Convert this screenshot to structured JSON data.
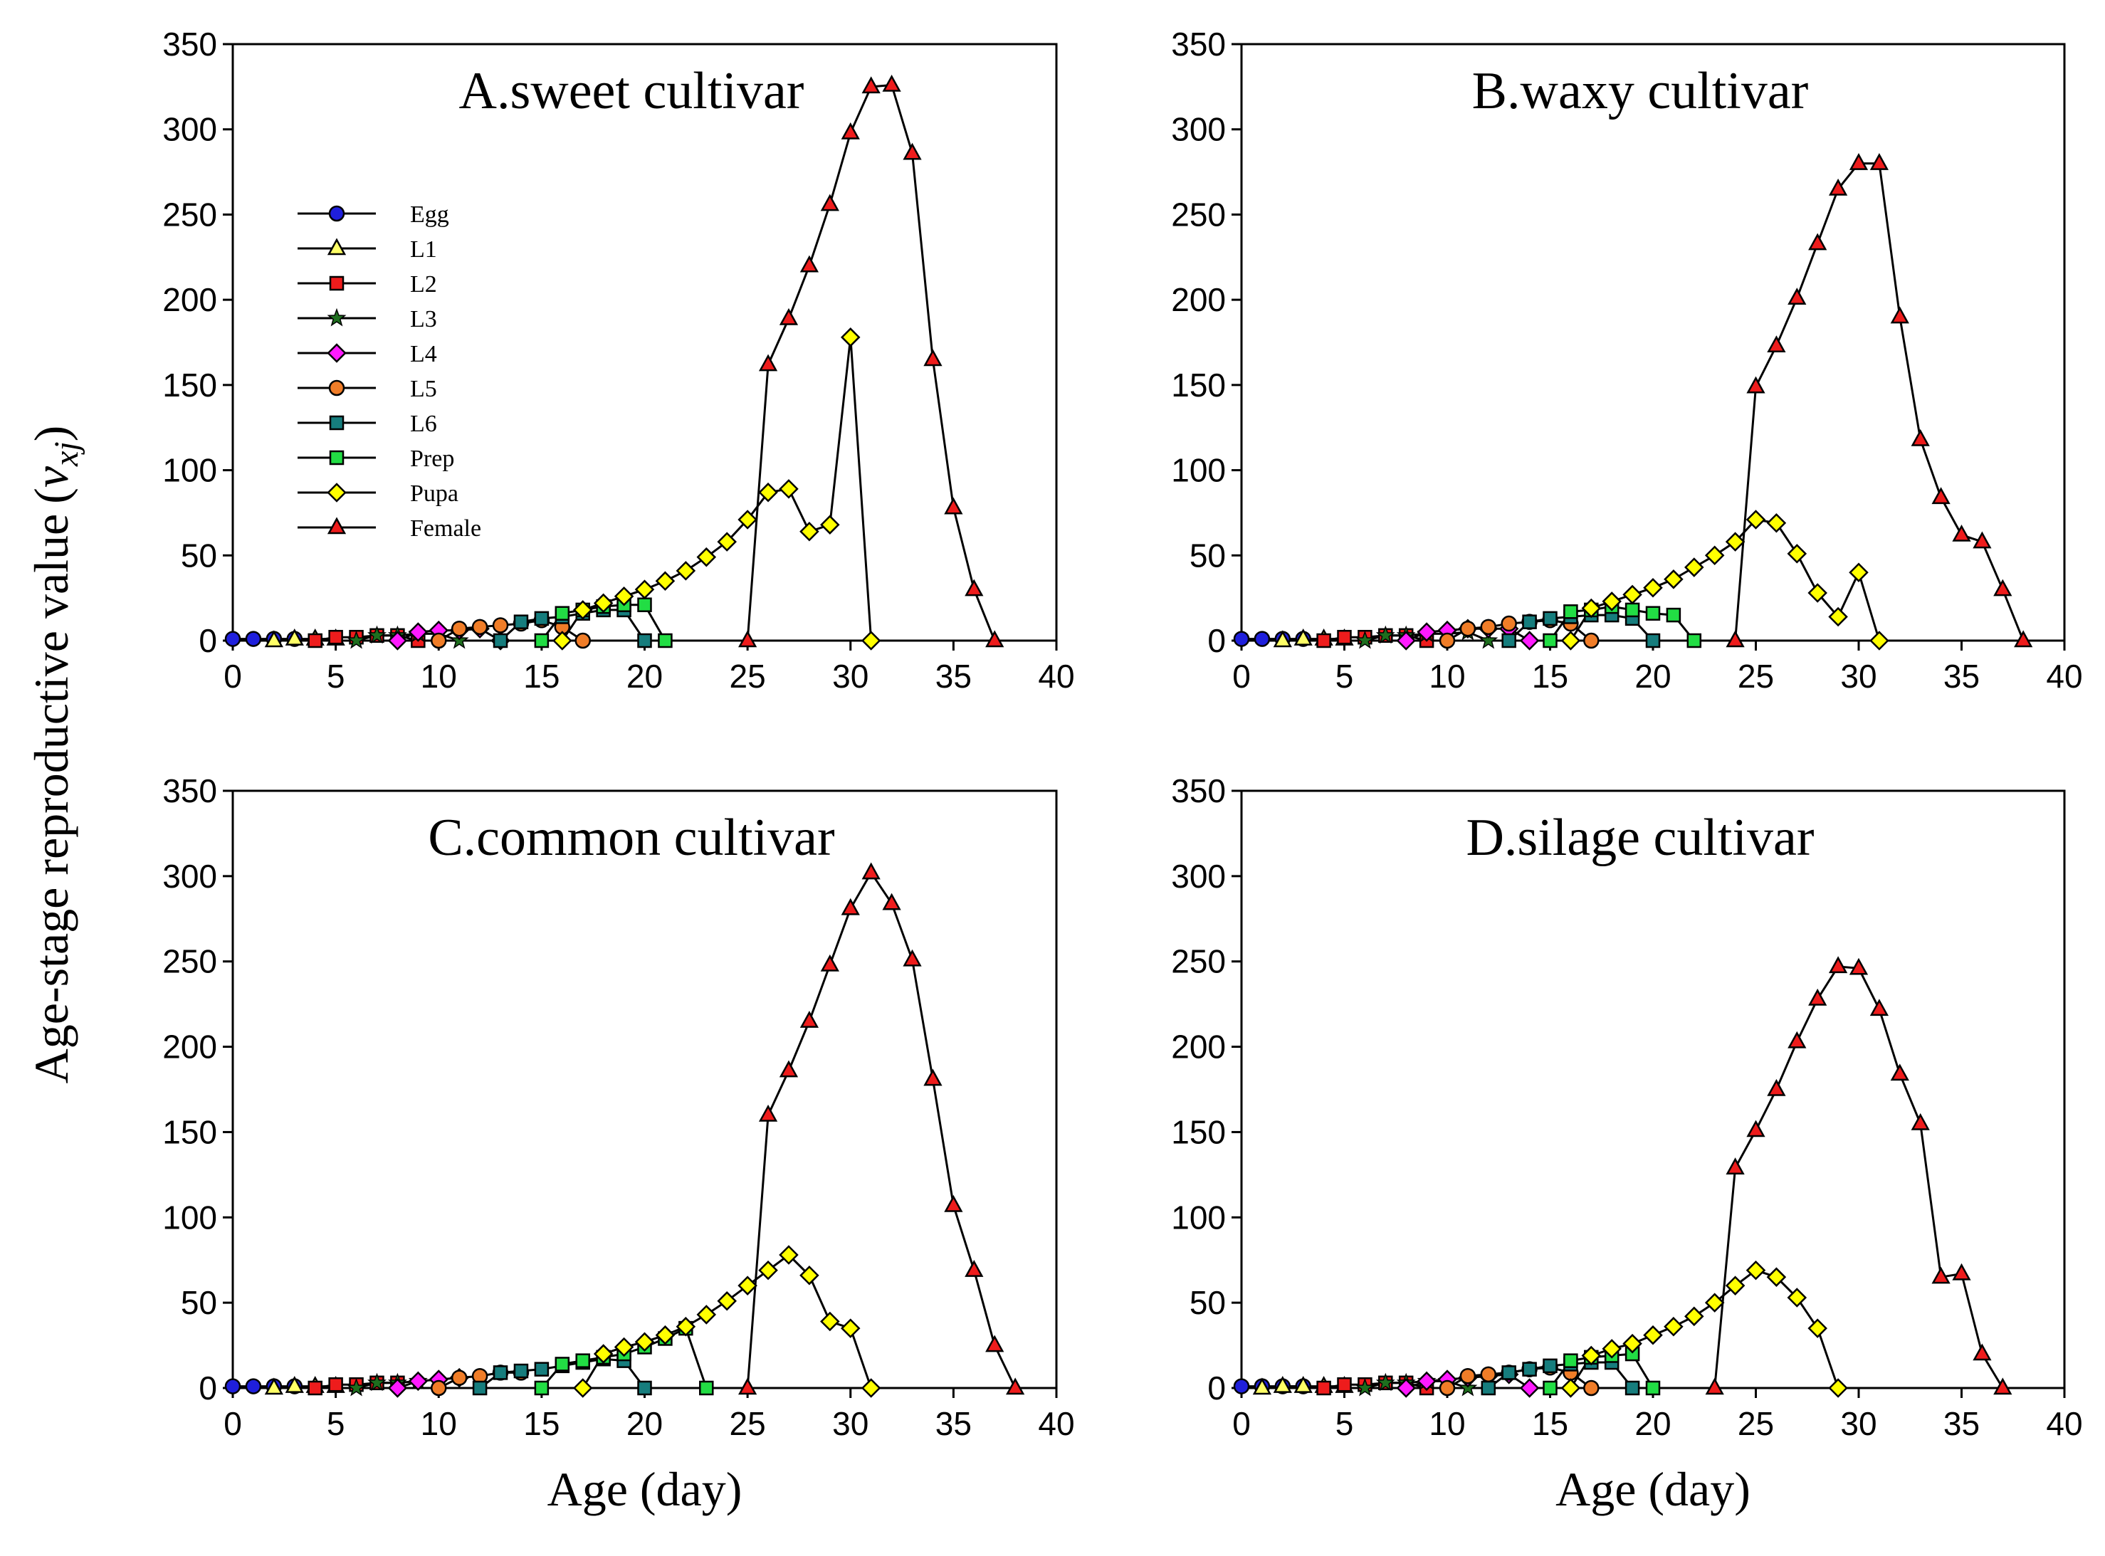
{
  "figure": {
    "y_axis_label": "Age-stage reproductive value",
    "y_axis_symbol": "v",
    "y_axis_subscript": "xj",
    "x_axis_label": "Age (day)"
  },
  "legend": [
    {
      "name": "Egg",
      "color": "#1f1fdc",
      "marker": "circle"
    },
    {
      "name": "L1",
      "color": "#ffff66",
      "marker": "triangle"
    },
    {
      "name": "L2",
      "color": "#ee1c1c",
      "marker": "square"
    },
    {
      "name": "L3",
      "color": "#1e6e1e",
      "marker": "star"
    },
    {
      "name": "L4",
      "color": "#ff1aff",
      "marker": "diamond"
    },
    {
      "name": "L5",
      "color": "#f07d28",
      "marker": "circle"
    },
    {
      "name": "L6",
      "color": "#167d7d",
      "marker": "square"
    },
    {
      "name": "Prep",
      "color": "#22dd44",
      "marker": "square"
    },
    {
      "name": "Pupa",
      "color": "#ffff00",
      "marker": "diamond"
    },
    {
      "name": "Female",
      "color": "#ee1c1c",
      "marker": "triangle"
    }
  ],
  "chart_data": [
    {
      "type": "line",
      "title": "A.sweet cultivar",
      "xlabel": "Age (day)",
      "ylabel": "Age-stage reproductive value (vxj)",
      "xlim": [
        0,
        40
      ],
      "ylim": [
        0,
        350
      ],
      "xticks": [
        0,
        5,
        10,
        15,
        20,
        25,
        30,
        35,
        40
      ],
      "yticks": [
        0,
        50,
        100,
        150,
        200,
        250,
        300,
        350
      ],
      "series": [
        {
          "name": "Egg",
          "x": [
            0,
            1,
            2,
            3
          ],
          "y": [
            1,
            1,
            1,
            1
          ]
        },
        {
          "name": "L1",
          "x": [
            2,
            3,
            4,
            5
          ],
          "y": [
            0,
            1,
            1,
            1
          ]
        },
        {
          "name": "L2",
          "x": [
            4,
            5,
            6,
            7,
            8,
            9
          ],
          "y": [
            0,
            2,
            2,
            3,
            3,
            0
          ]
        },
        {
          "name": "L3",
          "x": [
            6,
            7,
            8,
            9,
            10,
            11
          ],
          "y": [
            0,
            3,
            3,
            4,
            4,
            0
          ]
        },
        {
          "name": "L4",
          "x": [
            8,
            9,
            10,
            11,
            12,
            13
          ],
          "y": [
            0,
            5,
            6,
            6,
            7,
            0
          ]
        },
        {
          "name": "L5",
          "x": [
            10,
            11,
            12,
            13,
            14,
            15,
            16,
            17
          ],
          "y": [
            0,
            7,
            8,
            9,
            10,
            12,
            8,
            0
          ]
        },
        {
          "name": "L6",
          "x": [
            13,
            14,
            15,
            16,
            17,
            18,
            19,
            20
          ],
          "y": [
            0,
            11,
            13,
            14,
            16,
            18,
            18,
            0
          ]
        },
        {
          "name": "Prep",
          "x": [
            15,
            16,
            17,
            18,
            19,
            20,
            21
          ],
          "y": [
            0,
            16,
            18,
            20,
            21,
            21,
            0
          ]
        },
        {
          "name": "Pupa",
          "x": [
            16,
            17,
            18,
            19,
            20,
            21,
            22,
            23,
            24,
            25,
            26,
            27,
            28,
            29,
            30,
            31
          ],
          "y": [
            0,
            18,
            22,
            26,
            30,
            35,
            41,
            49,
            58,
            71,
            87,
            89,
            64,
            68,
            178,
            0
          ]
        },
        {
          "name": "Female",
          "x": [
            25,
            26,
            27,
            28,
            29,
            30,
            31,
            32,
            33,
            34,
            35,
            36,
            37
          ],
          "y": [
            0,
            162,
            189,
            220,
            256,
            298,
            325,
            326,
            286,
            165,
            78,
            30,
            0
          ]
        }
      ]
    },
    {
      "type": "line",
      "title": "B.waxy cultivar",
      "xlabel": "Age (day)",
      "ylabel": "Age-stage reproductive value (vxj)",
      "xlim": [
        0,
        40
      ],
      "ylim": [
        0,
        350
      ],
      "xticks": [
        0,
        5,
        10,
        15,
        20,
        25,
        30,
        35,
        40
      ],
      "yticks": [
        0,
        50,
        100,
        150,
        200,
        250,
        300,
        350
      ],
      "series": [
        {
          "name": "Egg",
          "x": [
            0,
            1,
            2,
            3
          ],
          "y": [
            1,
            1,
            1,
            1
          ]
        },
        {
          "name": "L1",
          "x": [
            2,
            3,
            4,
            5
          ],
          "y": [
            0,
            1,
            1,
            1
          ]
        },
        {
          "name": "L2",
          "x": [
            4,
            5,
            6,
            7,
            8,
            9
          ],
          "y": [
            0,
            2,
            2,
            3,
            3,
            0
          ]
        },
        {
          "name": "L3",
          "x": [
            6,
            7,
            8,
            9,
            10,
            11,
            12
          ],
          "y": [
            0,
            3,
            3,
            4,
            4,
            5,
            0
          ]
        },
        {
          "name": "L4",
          "x": [
            8,
            9,
            10,
            11,
            12,
            13,
            14
          ],
          "y": [
            0,
            5,
            6,
            7,
            7,
            7,
            0
          ]
        },
        {
          "name": "L5",
          "x": [
            10,
            11,
            12,
            13,
            14,
            15,
            16,
            17
          ],
          "y": [
            0,
            7,
            8,
            10,
            11,
            12,
            10,
            0
          ]
        },
        {
          "name": "L6",
          "x": [
            13,
            14,
            15,
            16,
            17,
            18,
            19,
            20
          ],
          "y": [
            0,
            11,
            13,
            14,
            15,
            15,
            13,
            0
          ]
        },
        {
          "name": "Prep",
          "x": [
            15,
            16,
            17,
            18,
            19,
            20,
            21,
            22
          ],
          "y": [
            0,
            17,
            18,
            20,
            18,
            16,
            15,
            0
          ]
        },
        {
          "name": "Pupa",
          "x": [
            16,
            17,
            18,
            19,
            20,
            21,
            22,
            23,
            24,
            25,
            26,
            27,
            28,
            29,
            30,
            31
          ],
          "y": [
            0,
            19,
            23,
            27,
            31,
            36,
            43,
            50,
            58,
            71,
            69,
            51,
            28,
            14,
            40,
            0
          ]
        },
        {
          "name": "Female",
          "x": [
            24,
            25,
            26,
            27,
            28,
            29,
            30,
            31,
            32,
            33,
            34,
            35,
            36,
            37,
            38
          ],
          "y": [
            0,
            149,
            173,
            201,
            233,
            265,
            280,
            280,
            190,
            118,
            84,
            62,
            58,
            30,
            0
          ]
        }
      ]
    },
    {
      "type": "line",
      "title": "C.common cultivar",
      "xlabel": "Age (day)",
      "ylabel": "Age-stage reproductive value (vxj)",
      "xlim": [
        0,
        40
      ],
      "ylim": [
        0,
        350
      ],
      "xticks": [
        0,
        5,
        10,
        15,
        20,
        25,
        30,
        35,
        40
      ],
      "yticks": [
        0,
        50,
        100,
        150,
        200,
        250,
        300,
        350
      ],
      "series": [
        {
          "name": "Egg",
          "x": [
            0,
            1,
            2,
            3
          ],
          "y": [
            1,
            1,
            1,
            1
          ]
        },
        {
          "name": "L1",
          "x": [
            2,
            3,
            4,
            5
          ],
          "y": [
            0,
            1,
            1,
            1
          ]
        },
        {
          "name": "L2",
          "x": [
            4,
            5,
            6,
            7,
            8
          ],
          "y": [
            0,
            2,
            2,
            3,
            3
          ]
        },
        {
          "name": "L3",
          "x": [
            6,
            7,
            8,
            9
          ],
          "y": [
            0,
            3,
            3,
            4
          ]
        },
        {
          "name": "L4",
          "x": [
            8,
            9,
            10,
            11
          ],
          "y": [
            0,
            4,
            5,
            6
          ]
        },
        {
          "name": "L5",
          "x": [
            10,
            11,
            12,
            13,
            14
          ],
          "y": [
            0,
            6,
            7,
            9,
            9
          ]
        },
        {
          "name": "L6",
          "x": [
            12,
            13,
            14,
            15,
            16,
            17,
            18,
            19,
            20
          ],
          "y": [
            0,
            9,
            10,
            11,
            13,
            15,
            17,
            16,
            0
          ]
        },
        {
          "name": "Prep",
          "x": [
            15,
            16,
            17,
            18,
            19,
            20,
            21,
            22,
            23
          ],
          "y": [
            0,
            14,
            16,
            18,
            20,
            24,
            29,
            35,
            0
          ]
        },
        {
          "name": "Pupa",
          "x": [
            17,
            18,
            19,
            20,
            21,
            22,
            23,
            24,
            25,
            26,
            27,
            28,
            29,
            30,
            31
          ],
          "y": [
            0,
            20,
            24,
            27,
            31,
            36,
            43,
            51,
            60,
            69,
            78,
            66,
            39,
            35,
            0
          ]
        },
        {
          "name": "Female",
          "x": [
            25,
            26,
            27,
            28,
            29,
            30,
            31,
            32,
            33,
            34,
            35,
            36,
            37,
            38
          ],
          "y": [
            0,
            160,
            186,
            215,
            248,
            281,
            302,
            284,
            251,
            181,
            107,
            69,
            25,
            0
          ]
        }
      ]
    },
    {
      "type": "line",
      "title": "D.silage cultivar",
      "xlabel": "Age (day)",
      "ylabel": "Age-stage reproductive value (vxj)",
      "xlim": [
        0,
        40
      ],
      "ylim": [
        0,
        350
      ],
      "xticks": [
        0,
        5,
        10,
        15,
        20,
        25,
        30,
        35,
        40
      ],
      "yticks": [
        0,
        50,
        100,
        150,
        200,
        250,
        300,
        350
      ],
      "series": [
        {
          "name": "Egg",
          "x": [
            0,
            1,
            2,
            3
          ],
          "y": [
            1,
            1,
            1,
            1
          ]
        },
        {
          "name": "L1",
          "x": [
            1,
            2,
            3,
            4,
            5
          ],
          "y": [
            0,
            1,
            1,
            1,
            1
          ]
        },
        {
          "name": "L2",
          "x": [
            4,
            5,
            6,
            7,
            8,
            9
          ],
          "y": [
            0,
            2,
            2,
            3,
            3,
            0
          ]
        },
        {
          "name": "L3",
          "x": [
            6,
            7,
            8,
            9,
            10,
            11
          ],
          "y": [
            0,
            3,
            3,
            4,
            4,
            0
          ]
        },
        {
          "name": "L4",
          "x": [
            8,
            9,
            10,
            11,
            12,
            13,
            14
          ],
          "y": [
            0,
            4,
            5,
            6,
            7,
            8,
            0
          ]
        },
        {
          "name": "L5",
          "x": [
            10,
            11,
            12,
            13,
            14,
            15,
            16,
            17
          ],
          "y": [
            0,
            7,
            8,
            9,
            11,
            12,
            9,
            0
          ]
        },
        {
          "name": "L6",
          "x": [
            12,
            13,
            14,
            15,
            16,
            17,
            18,
            19
          ],
          "y": [
            0,
            9,
            11,
            13,
            14,
            15,
            15,
            0
          ]
        },
        {
          "name": "Prep",
          "x": [
            15,
            16,
            17,
            18,
            19,
            20
          ],
          "y": [
            0,
            16,
            18,
            19,
            20,
            0
          ]
        },
        {
          "name": "Pupa",
          "x": [
            16,
            17,
            18,
            19,
            20,
            21,
            22,
            23,
            24,
            25,
            26,
            27,
            28,
            29
          ],
          "y": [
            0,
            19,
            23,
            26,
            31,
            36,
            42,
            50,
            60,
            69,
            65,
            53,
            35,
            0
          ]
        },
        {
          "name": "Female",
          "x": [
            23,
            24,
            25,
            26,
            27,
            28,
            29,
            30,
            31,
            32,
            33,
            34,
            35,
            36,
            37
          ],
          "y": [
            0,
            129,
            151,
            175,
            203,
            228,
            247,
            246,
            222,
            184,
            155,
            65,
            67,
            20,
            0
          ]
        }
      ]
    }
  ]
}
